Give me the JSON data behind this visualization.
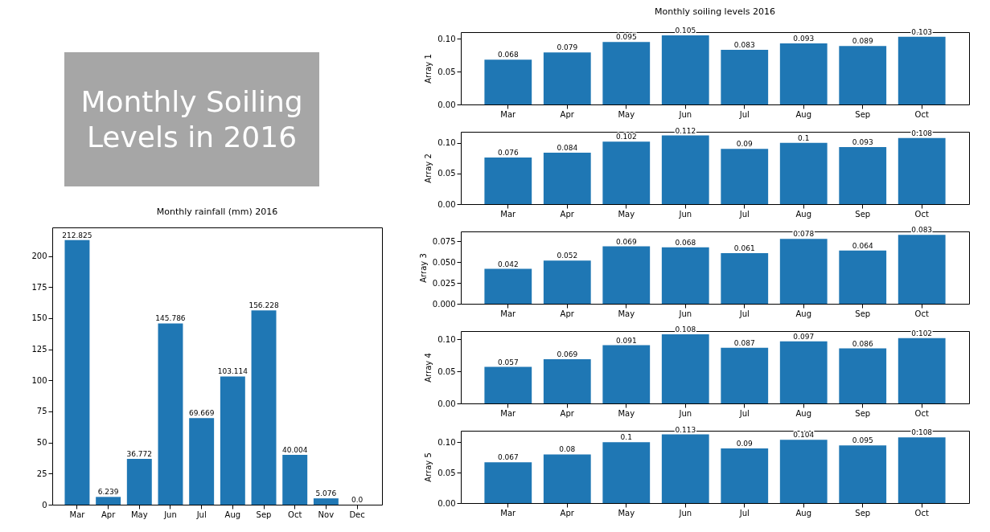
{
  "chart_data": [
    {
      "type": "other",
      "title": "Monthly Soiling Levels in 2016"
    },
    {
      "type": "bar",
      "title": "Monthly rainfall (mm) 2016",
      "categories": [
        "Mar",
        "Apr",
        "May",
        "Jun",
        "Jul",
        "Aug",
        "Sep",
        "Oct",
        "Nov",
        "Dec"
      ],
      "values": [
        212.825,
        6.239,
        36.772,
        145.786,
        69.669,
        103.114,
        156.228,
        40.004,
        5.076,
        0
      ],
      "value_labels": [
        "212.825",
        "6.239",
        "36.772",
        "145.786",
        "69.669",
        "103.114",
        "156.228",
        "40.004",
        "5.076",
        "0.0"
      ],
      "color": "#1f77b4",
      "ylim": [
        0,
        223
      ],
      "yticks": [
        0,
        25,
        50,
        75,
        100,
        125,
        150,
        175,
        200
      ],
      "grid": false
    },
    {
      "type": "bar",
      "title": "Monthly soiling levels 2016",
      "ylabel": "Array 1",
      "categories": [
        "Mar",
        "Apr",
        "May",
        "Jun",
        "Jul",
        "Aug",
        "Sep",
        "Oct"
      ],
      "values": [
        0.068,
        0.079,
        0.095,
        0.105,
        0.083,
        0.093,
        0.089,
        0.103
      ],
      "data_labels": true,
      "color": "#1f77b4",
      "ylim": [
        0,
        0.11
      ],
      "yticks": [
        {
          "value": 0,
          "label": "0.00"
        },
        0.05,
        {
          "value": 0.1,
          "label": "0.10"
        }
      ],
      "grid": false
    },
    {
      "type": "bar",
      "ylabel": "Array 2",
      "categories": [
        "Mar",
        "Apr",
        "May",
        "Jun",
        "Jul",
        "Aug",
        "Sep",
        "Oct"
      ],
      "values": [
        0.076,
        0.084,
        0.102,
        0.112,
        0.09,
        0.1,
        0.093,
        0.108
      ],
      "data_labels": true,
      "color": "#1f77b4",
      "ylim": [
        0,
        0.118
      ],
      "yticks": [
        {
          "value": 0,
          "label": "0.00"
        },
        0.05,
        {
          "value": 0.1,
          "label": "0.10"
        }
      ],
      "grid": false
    },
    {
      "type": "bar",
      "ylabel": "Array 3",
      "categories": [
        "Mar",
        "Apr",
        "May",
        "Jun",
        "Jul",
        "Aug",
        "Sep",
        "Oct"
      ],
      "values": [
        0.042,
        0.052,
        0.069,
        0.068,
        0.061,
        0.078,
        0.064,
        0.083
      ],
      "data_labels": true,
      "color": "#1f77b4",
      "ylim": [
        0,
        0.087
      ],
      "yticks": [
        {
          "value": 0,
          "label": "0.000"
        },
        0.025,
        {
          "value": 0.05,
          "label": "0.050"
        },
        0.075
      ],
      "grid": false
    },
    {
      "type": "bar",
      "ylabel": "Array 4",
      "categories": [
        "Mar",
        "Apr",
        "May",
        "Jun",
        "Jul",
        "Aug",
        "Sep",
        "Oct"
      ],
      "values": [
        0.057,
        0.069,
        0.091,
        0.108,
        0.087,
        0.097,
        0.086,
        0.102
      ],
      "data_labels": true,
      "color": "#1f77b4",
      "ylim": [
        0,
        0.113
      ],
      "yticks": [
        {
          "value": 0,
          "label": "0.00"
        },
        0.05,
        {
          "value": 0.1,
          "label": "0.10"
        }
      ],
      "grid": false
    },
    {
      "type": "bar",
      "ylabel": "Array 5",
      "categories": [
        "Mar",
        "Apr",
        "May",
        "Jun",
        "Jul",
        "Aug",
        "Sep",
        "Oct"
      ],
      "values": [
        0.067,
        0.08,
        0.1,
        0.113,
        0.09,
        0.104,
        0.095,
        0.108
      ],
      "data_labels": true,
      "color": "#1f77b4",
      "ylim": [
        0,
        0.119
      ],
      "yticks": [
        {
          "value": 0,
          "label": "0.00"
        },
        0.05,
        {
          "value": 0.1,
          "label": "0.10"
        }
      ],
      "grid": false
    }
  ]
}
